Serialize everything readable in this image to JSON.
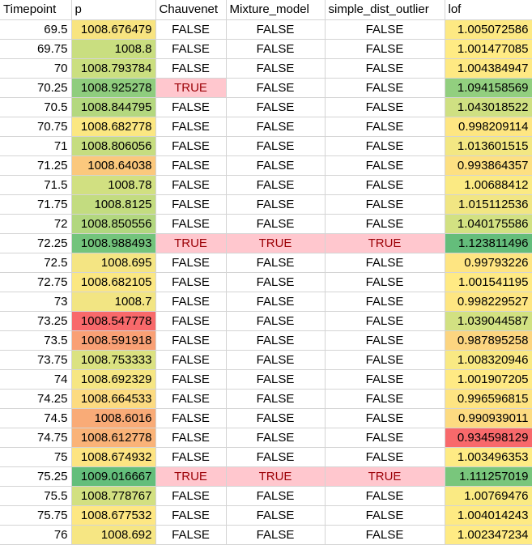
{
  "headers": [
    "Timepoint",
    "p",
    "Chauvenet",
    "Mixture_model",
    "simple_dist_outlier",
    "lof"
  ],
  "rows": [
    {
      "t": "69.5",
      "p": "1008.676479",
      "c": "FALSE",
      "m": "FALSE",
      "s": "FALSE",
      "lof": "1.005072586",
      "p_color": "#f8e480",
      "lof_color": "#fde983"
    },
    {
      "t": "69.75",
      "p": "1008.8",
      "c": "FALSE",
      "m": "FALSE",
      "s": "FALSE",
      "lof": "1.001477085",
      "p_color": "#c9de80",
      "lof_color": "#ffeb84"
    },
    {
      "t": "70",
      "p": "1008.793784",
      "c": "FALSE",
      "m": "FALSE",
      "s": "FALSE",
      "lof": "1.004384947",
      "p_color": "#cbdf80",
      "lof_color": "#fee983"
    },
    {
      "t": "70.25",
      "p": "1008.925278",
      "c": "TRUE",
      "m": "FALSE",
      "s": "FALSE",
      "lof": "1.094158569",
      "p_color": "#8fcd7e",
      "lof_color": "#92cf7f"
    },
    {
      "t": "70.5",
      "p": "1008.844795",
      "c": "FALSE",
      "m": "FALSE",
      "s": "FALSE",
      "lof": "1.043018522",
      "p_color": "#b4d87f",
      "lof_color": "#cfe082"
    },
    {
      "t": "70.75",
      "p": "1008.682778",
      "c": "FALSE",
      "m": "FALSE",
      "s": "FALSE",
      "lof": "0.998209114",
      "p_color": "#fbe782",
      "lof_color": "#fee682"
    },
    {
      "t": "71",
      "p": "1008.806056",
      "c": "FALSE",
      "m": "FALSE",
      "s": "FALSE",
      "lof": "1.013601515",
      "p_color": "#c6dd80",
      "lof_color": "#f3e783"
    },
    {
      "t": "71.25",
      "p": "1008.64038",
      "c": "FALSE",
      "m": "FALSE",
      "s": "FALSE",
      "lof": "0.993864357",
      "p_color": "#fbc87d",
      "lof_color": "#fde082"
    },
    {
      "t": "71.5",
      "p": "1008.78",
      "c": "FALSE",
      "m": "FALSE",
      "s": "FALSE",
      "lof": "1.00688412",
      "p_color": "#d1e081",
      "lof_color": "#fbea83"
    },
    {
      "t": "71.75",
      "p": "1008.8125",
      "c": "FALSE",
      "m": "FALSE",
      "s": "FALSE",
      "lof": "1.015112536",
      "p_color": "#c3dc80",
      "lof_color": "#f1e683"
    },
    {
      "t": "72",
      "p": "1008.850556",
      "c": "FALSE",
      "m": "FALSE",
      "s": "FALSE",
      "lof": "1.040175586",
      "p_color": "#b2d77f",
      "lof_color": "#d2e182"
    },
    {
      "t": "72.25",
      "p": "1008.988493",
      "c": "TRUE",
      "m": "TRUE",
      "s": "TRUE",
      "lof": "1.123811496",
      "p_color": "#73c47c",
      "lof_color": "#64bd7b"
    },
    {
      "t": "72.5",
      "p": "1008.695",
      "c": "FALSE",
      "m": "FALSE",
      "s": "FALSE",
      "lof": "0.99793226",
      "p_color": "#f4e583",
      "lof_color": "#fee582"
    },
    {
      "t": "72.75",
      "p": "1008.682105",
      "c": "FALSE",
      "m": "FALSE",
      "s": "FALSE",
      "lof": "1.001541195",
      "p_color": "#fbe782",
      "lof_color": "#ffea84"
    },
    {
      "t": "73",
      "p": "1008.7",
      "c": "FALSE",
      "m": "FALSE",
      "s": "FALSE",
      "lof": "0.998229527",
      "p_color": "#f2e583",
      "lof_color": "#fee682"
    },
    {
      "t": "73.25",
      "p": "1008.547778",
      "c": "FALSE",
      "m": "FALSE",
      "s": "FALSE",
      "lof": "1.039044587",
      "p_color": "#f8696b",
      "lof_color": "#d2e182"
    },
    {
      "t": "73.5",
      "p": "1008.591918",
      "c": "FALSE",
      "m": "FALSE",
      "s": "FALSE",
      "lof": "0.987895258",
      "p_color": "#f9a075",
      "lof_color": "#fcd580"
    },
    {
      "t": "73.75",
      "p": "1008.753333",
      "c": "FALSE",
      "m": "FALSE",
      "s": "FALSE",
      "lof": "1.008320946",
      "p_color": "#dbe281",
      "lof_color": "#f9e983"
    },
    {
      "t": "74",
      "p": "1008.692329",
      "c": "FALSE",
      "m": "FALSE",
      "s": "FALSE",
      "lof": "1.001907205",
      "p_color": "#f6e683",
      "lof_color": "#ffea84"
    },
    {
      "t": "74.25",
      "p": "1008.664533",
      "c": "FALSE",
      "m": "FALSE",
      "s": "FALSE",
      "lof": "0.996596815",
      "p_color": "#fcdb81",
      "lof_color": "#fee482"
    },
    {
      "t": "74.5",
      "p": "1008.6016",
      "c": "FALSE",
      "m": "FALSE",
      "s": "FALSE",
      "lof": "0.990939011",
      "p_color": "#f9ab77",
      "lof_color": "#fddb81"
    },
    {
      "t": "74.75",
      "p": "1008.612778",
      "c": "FALSE",
      "m": "FALSE",
      "s": "FALSE",
      "lof": "0.934598129",
      "p_color": "#fab378",
      "lof_color": "#f8696b"
    },
    {
      "t": "75",
      "p": "1008.674932",
      "c": "FALSE",
      "m": "FALSE",
      "s": "FALSE",
      "lof": "1.003496353",
      "p_color": "#fde482",
      "lof_color": "#feeb84"
    },
    {
      "t": "75.25",
      "p": "1009.016667",
      "c": "TRUE",
      "m": "TRUE",
      "s": "TRUE",
      "lof": "1.111257019",
      "p_color": "#63be7b",
      "lof_color": "#79c67c"
    },
    {
      "t": "75.5",
      "p": "1008.778767",
      "c": "FALSE",
      "m": "FALSE",
      "s": "FALSE",
      "lof": "1.00769476",
      "p_color": "#d2e081",
      "lof_color": "#faea83"
    },
    {
      "t": "75.75",
      "p": "1008.677532",
      "c": "FALSE",
      "m": "FALSE",
      "s": "FALSE",
      "lof": "1.004014243",
      "p_color": "#fde783",
      "lof_color": "#feea83"
    },
    {
      "t": "76",
      "p": "1008.692",
      "c": "FALSE",
      "m": "FALSE",
      "s": "FALSE",
      "lof": "1.002347234",
      "p_color": "#f6e683",
      "lof_color": "#ffeb84"
    }
  ]
}
